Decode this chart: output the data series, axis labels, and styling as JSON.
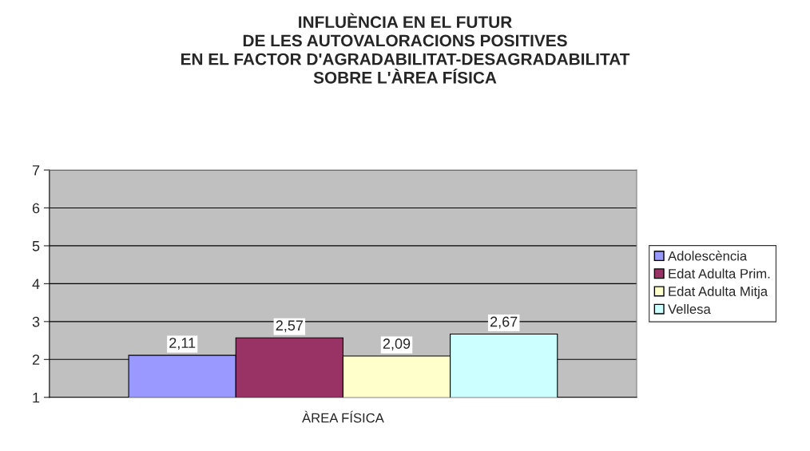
{
  "chart_data": {
    "type": "bar",
    "title": "INFLUÈNCIA EN EL FUTUR\nDE LES AUTOVALORACIONS POSITIVES\nEN EL FACTOR D'AGRADABILITAT-DESAGRADABILITAT\nSOBRE L'ÀREA FÍSICA",
    "categories": [
      "ÀREA FÍSICA"
    ],
    "series": [
      {
        "name": "Adolescència",
        "color": "#9999ff",
        "values": [
          2.11
        ],
        "value_labels": [
          "2,11"
        ]
      },
      {
        "name": "Edat Adulta Prim.",
        "color": "#993366",
        "values": [
          2.57
        ],
        "value_labels": [
          "2,57"
        ]
      },
      {
        "name": "Edat Adulta Mitja",
        "color": "#ffffcc",
        "values": [
          2.09
        ],
        "value_labels": [
          "2,09"
        ]
      },
      {
        "name": "Vellesa",
        "color": "#ccffff",
        "values": [
          2.67
        ],
        "value_labels": [
          "2,67"
        ]
      }
    ],
    "ylim": [
      1,
      7
    ],
    "yticks": [
      1,
      2,
      3,
      4,
      5,
      6,
      7
    ],
    "grid": "y",
    "legend": "right"
  }
}
